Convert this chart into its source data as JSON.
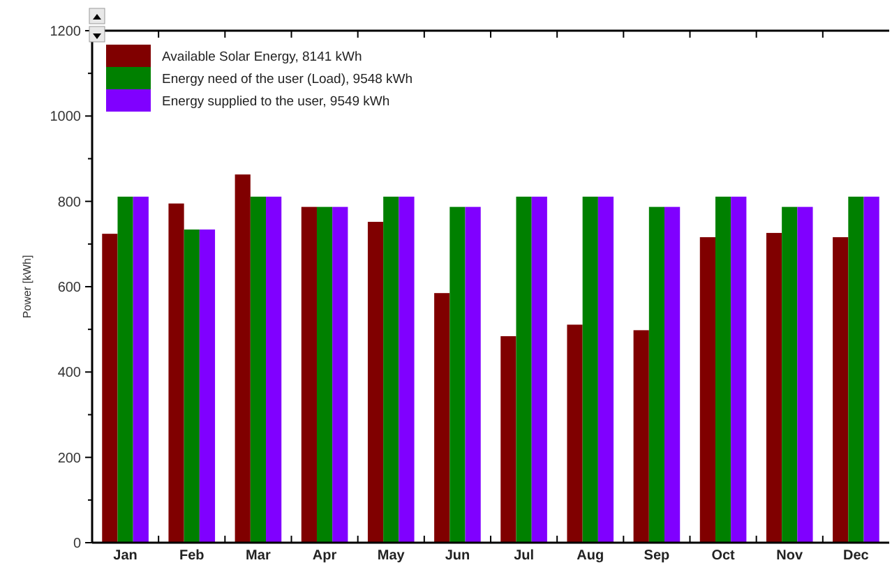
{
  "chart_data": {
    "type": "bar",
    "ylabel": "Power  [kWh]",
    "categories": [
      "Jan",
      "Feb",
      "Mar",
      "Apr",
      "May",
      "Jun",
      "Jul",
      "Aug",
      "Sep",
      "Oct",
      "Nov",
      "Dec"
    ],
    "series": [
      {
        "name": "Available Solar Energy,  8141 kWh",
        "color": "#800000",
        "values": [
          724,
          795,
          863,
          787,
          752,
          585,
          484,
          511,
          498,
          716,
          726,
          716
        ]
      },
      {
        "name": "Energy need of the user (Load),  9548 kWh",
        "color": "#008000",
        "values": [
          811,
          734,
          811,
          787,
          811,
          787,
          811,
          811,
          787,
          811,
          787,
          811
        ]
      },
      {
        "name": "Energy supplied to the user,  9549 kWh",
        "color": "#8000ff",
        "values": [
          811,
          734,
          811,
          787,
          811,
          787,
          811,
          811,
          787,
          811,
          787,
          811
        ]
      }
    ],
    "ylim": [
      0,
      1200
    ],
    "yticks": [
      0,
      200,
      400,
      600,
      800,
      1000,
      1200
    ],
    "grid": false,
    "legend": "top left"
  }
}
